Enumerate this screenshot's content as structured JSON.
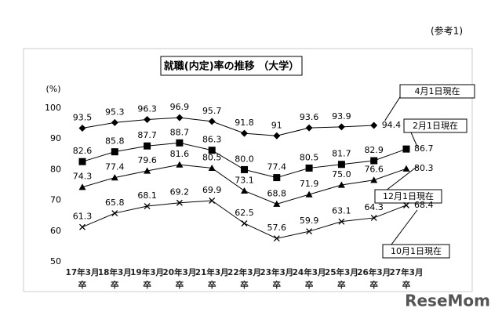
{
  "chart_data": {
    "type": "line",
    "title": "就職(内定)率の推移 （大学）",
    "note": "(参考1)",
    "y_unit": "(%)",
    "watermark": "ReseMom",
    "categories": [
      "17年3月\n卒",
      "18年3月\n卒",
      "19年3月\n卒",
      "20年3月\n卒",
      "21年3月\n卒",
      "22年3月\n卒",
      "23年3月\n卒",
      "24年3月\n卒",
      "25年3月\n卒",
      "26年3月\n卒",
      "27年3月\n卒"
    ],
    "series": [
      {
        "name": "4月1日現在",
        "color": "#000000",
        "marker": "diamond",
        "values": [
          93.5,
          95.3,
          96.3,
          96.9,
          95.7,
          91.8,
          91.0,
          93.6,
          93.9,
          94.4,
          null
        ]
      },
      {
        "name": "2月1日現在",
        "color": "#000000",
        "marker": "square",
        "values": [
          82.6,
          85.8,
          87.7,
          88.7,
          86.3,
          80,
          77.4,
          80.5,
          81.7,
          82.9,
          86.7
        ],
        "value_labels": [
          "82.6",
          "85.8",
          "87.7",
          "88.7",
          "86.3",
          "80.0",
          "77.4",
          "80.5",
          "81.7",
          "82.9",
          "86.7"
        ]
      },
      {
        "name": "12月1日現在",
        "color": "#000000",
        "marker": "triangle",
        "values": [
          74.3,
          77.4,
          79.6,
          81.6,
          80.5,
          73.1,
          68.8,
          71.9,
          75,
          76.6,
          80.3
        ],
        "value_labels": [
          "74.3",
          "77.4",
          "79.6",
          "81.6",
          "80.5",
          "73.1",
          "68.8",
          "71.9",
          "75.0",
          "76.6",
          "80.3"
        ]
      },
      {
        "name": "10月1日現在",
        "color": "#000000",
        "marker": "cross",
        "values": [
          61.3,
          65.8,
          68.1,
          69.2,
          69.9,
          62.5,
          57.6,
          59.9,
          63.1,
          64.3,
          68.4
        ]
      }
    ],
    "ylim": [
      50,
      100
    ],
    "yticks": [
      50,
      60,
      70,
      80,
      90,
      100
    ]
  }
}
